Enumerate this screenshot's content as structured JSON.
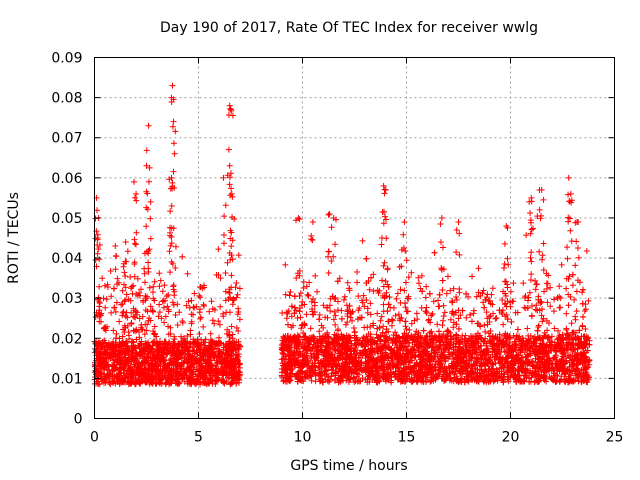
{
  "chart_data": {
    "type": "scatter",
    "title": "Day 190 of 2017, Rate Of TEC Index for receiver wwlg",
    "xlabel": "GPS time / hours",
    "ylabel": "ROTI / TECUs",
    "xlim": [
      0,
      25
    ],
    "ylim": [
      0,
      0.09
    ],
    "xticks": [
      0,
      5,
      10,
      15,
      20,
      25
    ],
    "xtick_labels": [
      "0",
      "5",
      "10",
      "15",
      "20",
      "25"
    ],
    "yticks": [
      0,
      0.01,
      0.02,
      0.03,
      0.04,
      0.05,
      0.06,
      0.07,
      0.08,
      0.09
    ],
    "ytick_labels": [
      "0",
      "0.01",
      "0.02",
      "0.03",
      "0.04",
      "0.05",
      "0.06",
      "0.07",
      "0.08",
      "0.09"
    ],
    "grid": true,
    "marker": "plus",
    "color": "#ff0000",
    "series": [
      {
        "name": "ROTI",
        "segments": [
          {
            "x_start": 0.0,
            "x_end": 7.0,
            "base_median": 0.011,
            "spread": 0.012
          },
          {
            "x_start": 9.0,
            "x_end": 23.8,
            "base_median": 0.012,
            "spread": 0.013
          }
        ],
        "peaks": [
          {
            "x": 0.1,
            "y": 0.055
          },
          {
            "x": 0.15,
            "y": 0.045
          },
          {
            "x": 0.2,
            "y": 0.05
          },
          {
            "x": 1.0,
            "y": 0.043
          },
          {
            "x": 1.5,
            "y": 0.044
          },
          {
            "x": 1.9,
            "y": 0.059
          },
          {
            "x": 2.0,
            "y": 0.056
          },
          {
            "x": 2.5,
            "y": 0.063
          },
          {
            "x": 2.6,
            "y": 0.073
          },
          {
            "x": 2.7,
            "y": 0.054
          },
          {
            "x": 3.7,
            "y": 0.08
          },
          {
            "x": 3.75,
            "y": 0.083
          },
          {
            "x": 3.8,
            "y": 0.074
          },
          {
            "x": 3.85,
            "y": 0.066
          },
          {
            "x": 3.7,
            "y": 0.06
          },
          {
            "x": 6.2,
            "y": 0.06
          },
          {
            "x": 6.5,
            "y": 0.078
          },
          {
            "x": 6.55,
            "y": 0.077
          },
          {
            "x": 6.5,
            "y": 0.063
          },
          {
            "x": 6.6,
            "y": 0.056
          },
          {
            "x": 9.8,
            "y": 0.05
          },
          {
            "x": 10.5,
            "y": 0.049
          },
          {
            "x": 11.3,
            "y": 0.051
          },
          {
            "x": 11.5,
            "y": 0.05
          },
          {
            "x": 13.9,
            "y": 0.058
          },
          {
            "x": 14.0,
            "y": 0.057
          },
          {
            "x": 14.9,
            "y": 0.049
          },
          {
            "x": 16.7,
            "y": 0.05
          },
          {
            "x": 17.5,
            "y": 0.049
          },
          {
            "x": 19.8,
            "y": 0.048
          },
          {
            "x": 20.9,
            "y": 0.054
          },
          {
            "x": 21.0,
            "y": 0.055
          },
          {
            "x": 21.5,
            "y": 0.057
          },
          {
            "x": 21.4,
            "y": 0.052
          },
          {
            "x": 22.8,
            "y": 0.06
          },
          {
            "x": 22.9,
            "y": 0.056
          },
          {
            "x": 23.2,
            "y": 0.049
          }
        ]
      }
    ]
  }
}
